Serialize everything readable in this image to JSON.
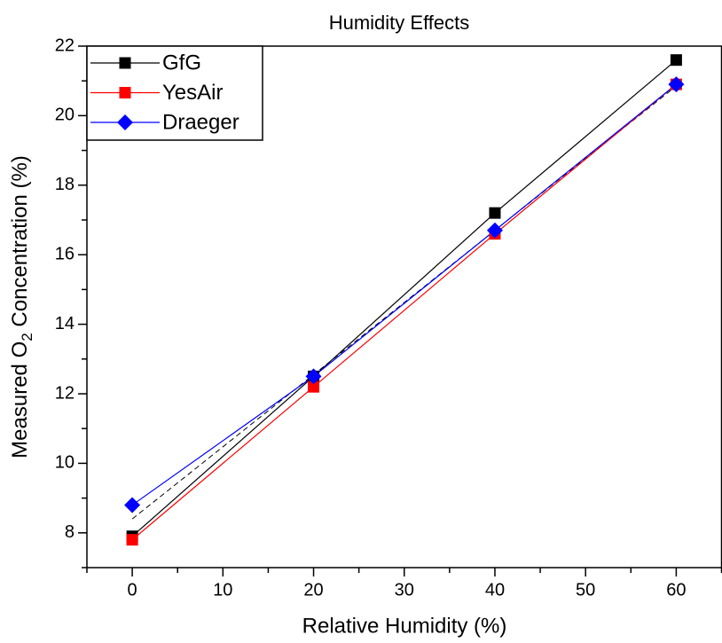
{
  "chart_data": {
    "type": "line",
    "title": "Humidity Effects",
    "x_label": "Relative Humidity (%)",
    "y_label_parts": [
      "Measured O",
      "2",
      " Concentration (%)"
    ],
    "x": [
      0,
      20,
      40,
      60
    ],
    "series": [
      {
        "name": "GfG",
        "color": "#000000",
        "marker": "square",
        "values": [
          7.9,
          12.5,
          17.2,
          21.6
        ]
      },
      {
        "name": "YesAir",
        "color": "#ff0000",
        "marker": "square",
        "values": [
          7.8,
          12.2,
          16.6,
          20.9
        ]
      },
      {
        "name": "Draeger",
        "color": "#0000ff",
        "marker": "diamond",
        "values": [
          8.8,
          12.5,
          16.7,
          20.9
        ]
      }
    ],
    "fit_line": {
      "color": "#000000",
      "dashed": true,
      "x": [
        0,
        60
      ],
      "values": [
        8.4,
        20.85
      ]
    },
    "xlim": [
      -5,
      65
    ],
    "ylim": [
      7,
      22
    ],
    "xticks": [
      0,
      10,
      20,
      30,
      40,
      50,
      60
    ],
    "yticks": [
      8,
      10,
      12,
      14,
      16,
      18,
      20,
      22
    ],
    "xminorticks": [
      -5,
      5,
      15,
      25,
      35,
      45,
      55,
      65
    ],
    "yminorticks": [
      7,
      9,
      11,
      13,
      15,
      17,
      19,
      21
    ],
    "legend_position": "upper left",
    "grid": false
  }
}
